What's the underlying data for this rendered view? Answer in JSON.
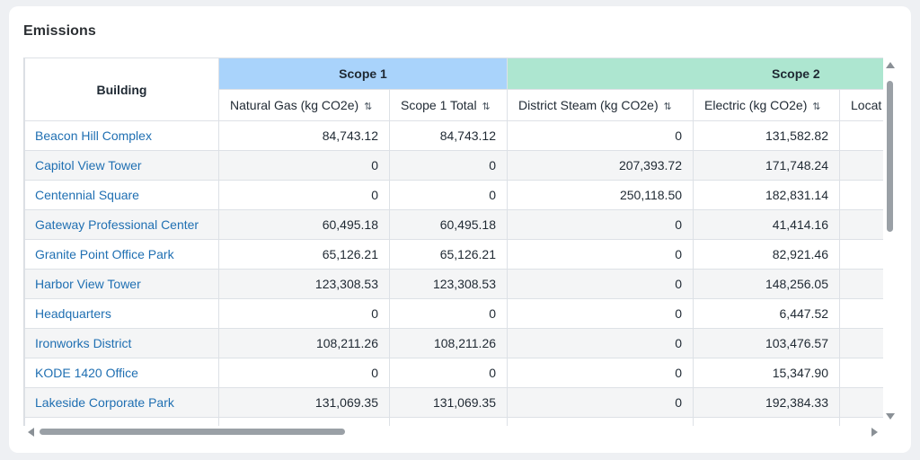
{
  "title": "Emissions",
  "table": {
    "building_header": "Building",
    "groups": [
      {
        "label": "Scope 1",
        "color": "#a9d3fb"
      },
      {
        "label": "Scope 2",
        "color": "#ade6d0"
      }
    ],
    "columns": [
      {
        "label": "Natural Gas (kg CO2e)",
        "sort_icon": "sort-icon"
      },
      {
        "label": "Scope 1 Total",
        "sort_icon": "sort-icon"
      },
      {
        "label": "District Steam (kg CO2e)",
        "sort_icon": "sort-icon"
      },
      {
        "label": "Electric (kg CO2e)",
        "sort_icon": "sort-icon"
      },
      {
        "label": "Locat"
      }
    ],
    "sort_glyph": "⇅",
    "rows": [
      {
        "name": "Beacon Hill Complex",
        "values": [
          "84,743.12",
          "84,743.12",
          "0",
          "131,582.82",
          ""
        ]
      },
      {
        "name": "Capitol View Tower",
        "values": [
          "0",
          "0",
          "207,393.72",
          "171,748.24",
          ""
        ]
      },
      {
        "name": "Centennial Square",
        "values": [
          "0",
          "0",
          "250,118.50",
          "182,831.14",
          ""
        ]
      },
      {
        "name": "Gateway Professional Center",
        "values": [
          "60,495.18",
          "60,495.18",
          "0",
          "41,414.16",
          ""
        ]
      },
      {
        "name": "Granite Point Office Park",
        "values": [
          "65,126.21",
          "65,126.21",
          "0",
          "82,921.46",
          ""
        ]
      },
      {
        "name": "Harbor View Tower",
        "values": [
          "123,308.53",
          "123,308.53",
          "0",
          "148,256.05",
          ""
        ]
      },
      {
        "name": "Headquarters",
        "values": [
          "0",
          "0",
          "0",
          "6,447.52",
          ""
        ]
      },
      {
        "name": "Ironworks District",
        "values": [
          "108,211.26",
          "108,211.26",
          "0",
          "103,476.57",
          ""
        ]
      },
      {
        "name": "KODE 1420 Office",
        "values": [
          "0",
          "0",
          "0",
          "15,347.90",
          ""
        ]
      },
      {
        "name": "Lakeside Corporate Park",
        "values": [
          "131,069.35",
          "131,069.35",
          "0",
          "192,384.33",
          ""
        ]
      },
      {
        "name": "",
        "values": [
          "",
          "",
          "",
          "",
          ""
        ]
      }
    ]
  }
}
